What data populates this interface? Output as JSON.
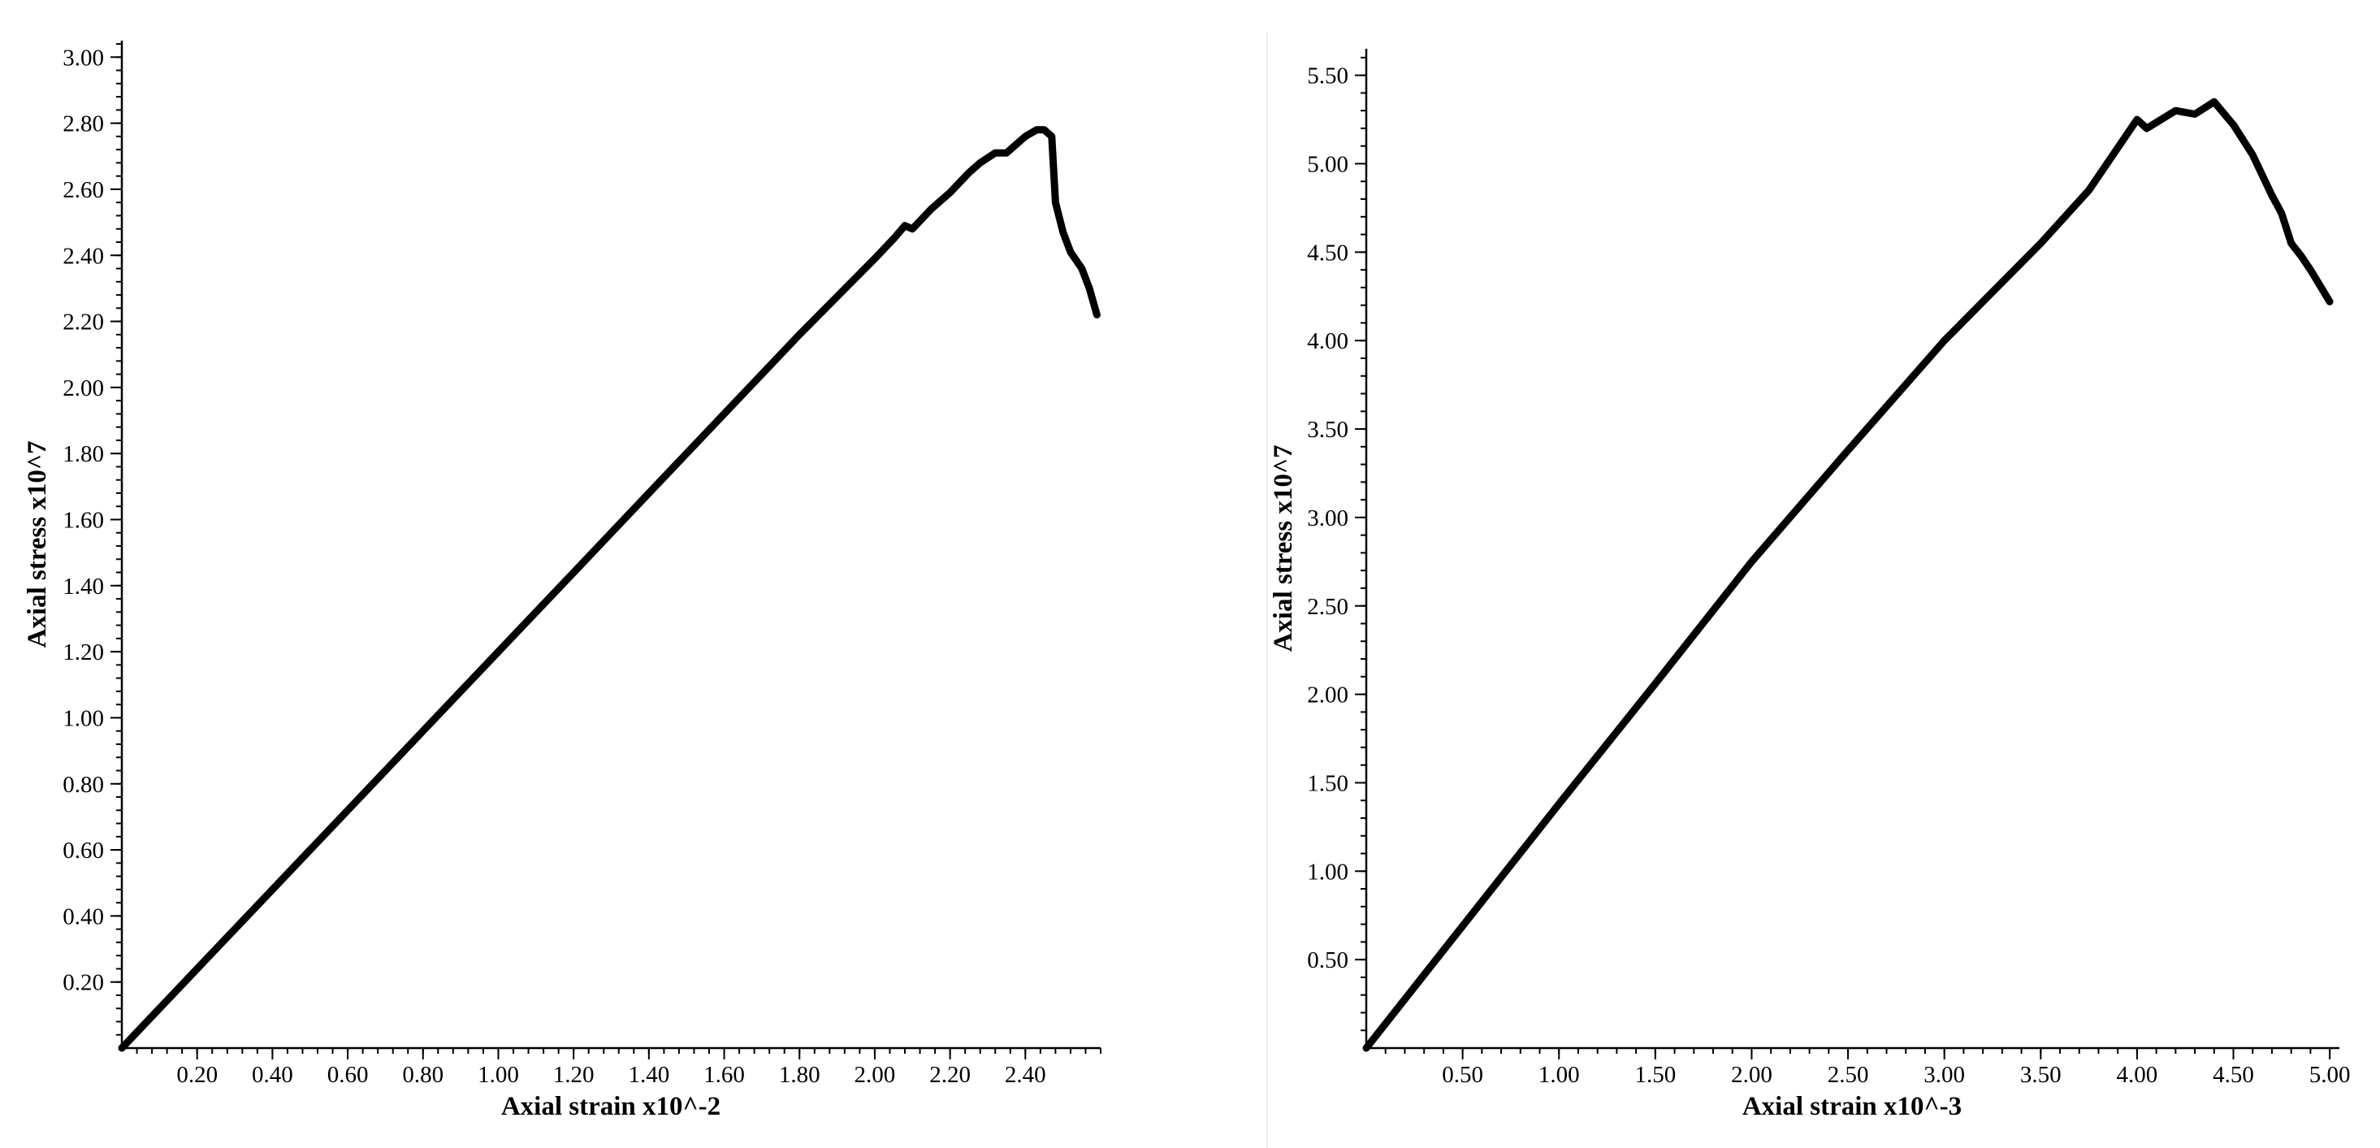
{
  "chart_data": [
    {
      "type": "line",
      "title": "",
      "xlabel": "Axial strain x10^-2",
      "ylabel": "Axial stress x10^7",
      "xlim": [
        0,
        2.6
      ],
      "ylim": [
        0,
        3.05
      ],
      "xticks": [
        "0.20",
        "0.40",
        "0.60",
        "0.80",
        "1.00",
        "1.20",
        "1.40",
        "1.60",
        "1.80",
        "2.00",
        "2.20",
        "2.40"
      ],
      "yticks": [
        "0.20",
        "0.40",
        "0.60",
        "0.80",
        "1.00",
        "1.20",
        "1.40",
        "1.60",
        "1.80",
        "2.00",
        "2.20",
        "2.40",
        "2.60",
        "2.80",
        "3.00"
      ],
      "grid": false,
      "series": [
        {
          "x": [
            0,
            0.2,
            0.4,
            0.6,
            0.8,
            1.0,
            1.2,
            1.4,
            1.6,
            1.8,
            2.0,
            2.05,
            2.08,
            2.1,
            2.15,
            2.2,
            2.25,
            2.28,
            2.32,
            2.35,
            2.38,
            2.4,
            2.43,
            2.45,
            2.47,
            2.48,
            2.5,
            2.52,
            2.55,
            2.57,
            2.59
          ],
          "y": [
            0,
            0.24,
            0.48,
            0.72,
            0.96,
            1.2,
            1.44,
            1.68,
            1.92,
            2.16,
            2.39,
            2.45,
            2.49,
            2.48,
            2.54,
            2.59,
            2.65,
            2.68,
            2.71,
            2.71,
            2.74,
            2.76,
            2.78,
            2.78,
            2.76,
            2.56,
            2.47,
            2.41,
            2.36,
            2.3,
            2.22
          ]
        }
      ]
    },
    {
      "type": "line",
      "title": "",
      "xlabel": "Axial strain x10^-3",
      "ylabel": "Axial stress x10^7",
      "xlim": [
        0,
        5.05
      ],
      "ylim": [
        0,
        5.65
      ],
      "xticks": [
        "0.50",
        "1.00",
        "1.50",
        "2.00",
        "2.50",
        "3.00",
        "3.50",
        "4.00",
        "4.50",
        "5.00"
      ],
      "yticks": [
        "0.50",
        "1.00",
        "1.50",
        "2.00",
        "2.50",
        "3.00",
        "3.50",
        "4.00",
        "4.50",
        "5.00",
        "5.50"
      ],
      "grid": false,
      "series": [
        {
          "x": [
            0,
            0.5,
            1.0,
            1.5,
            2.0,
            2.5,
            3.0,
            3.5,
            3.75,
            4.0,
            4.05,
            4.2,
            4.3,
            4.4,
            4.5,
            4.6,
            4.7,
            4.75,
            4.8,
            4.85,
            4.9,
            5.0
          ],
          "y": [
            0,
            0.69,
            1.38,
            2.06,
            2.75,
            3.38,
            4.0,
            4.55,
            4.85,
            5.25,
            5.2,
            5.3,
            5.28,
            5.35,
            5.22,
            5.05,
            4.82,
            4.72,
            4.55,
            4.48,
            4.4,
            4.22
          ]
        }
      ]
    }
  ]
}
